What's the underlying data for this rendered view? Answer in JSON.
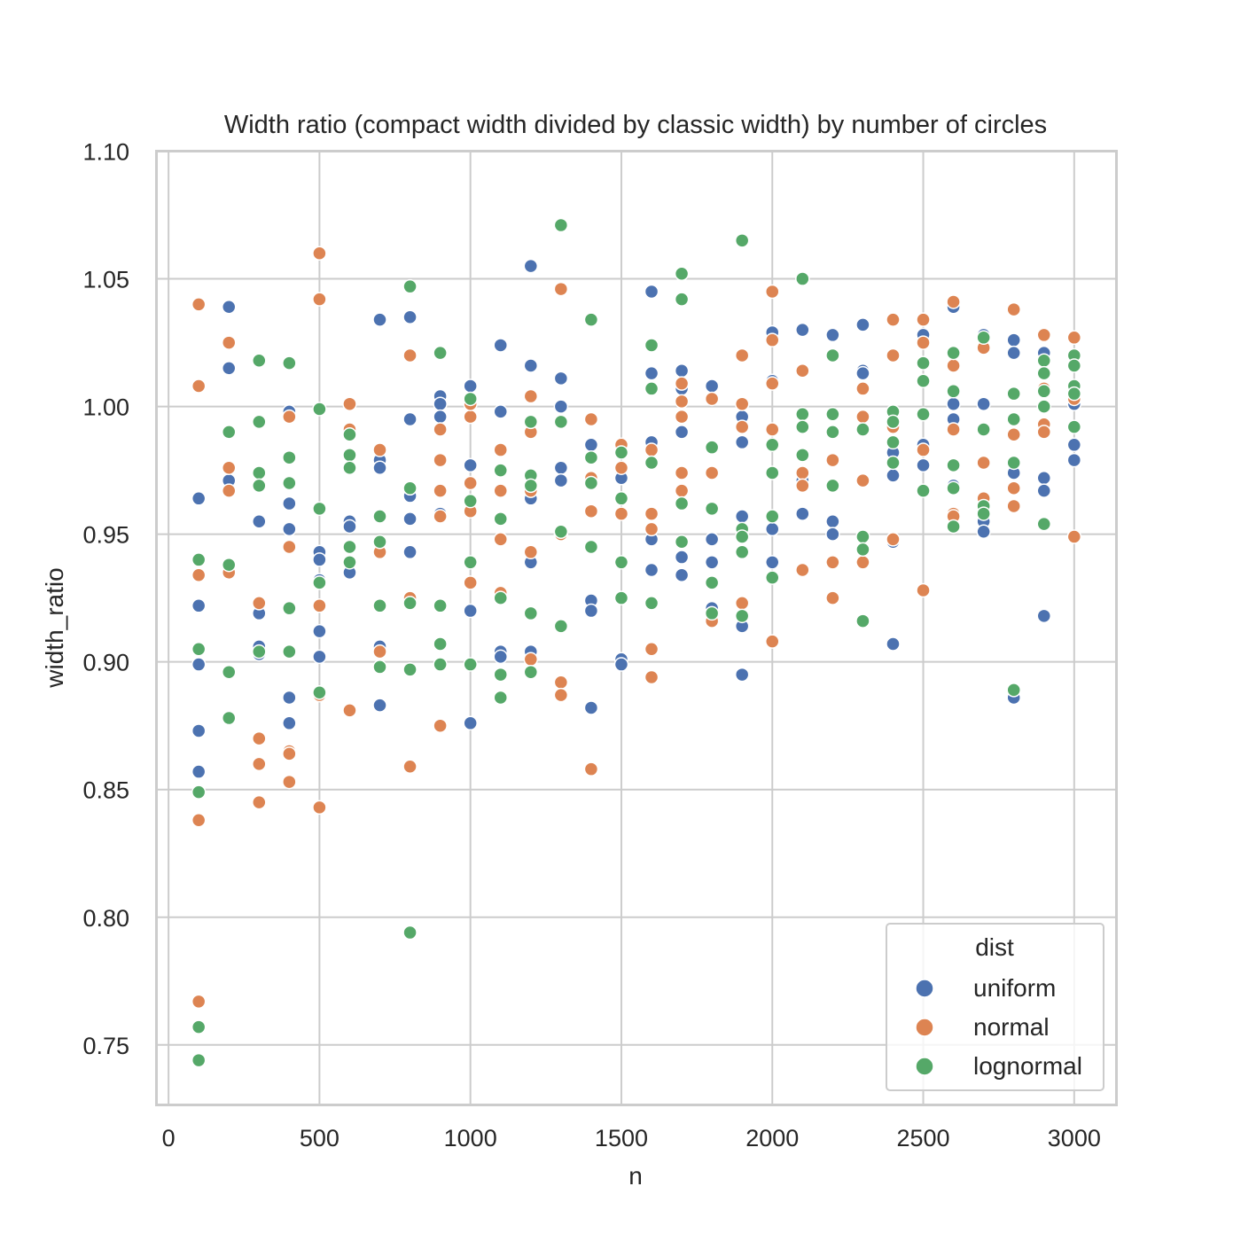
{
  "chart_data": {
    "type": "scatter",
    "title": "Width ratio (compact width divided by classic width) by number of circles",
    "xlabel": "n",
    "ylabel": "width_ratio",
    "xlim": [
      -40,
      3140
    ],
    "ylim": [
      0.7265,
      1.1
    ],
    "xticks": [
      "0",
      "500",
      "1000",
      "1500",
      "2000",
      "2500",
      "3000"
    ],
    "yticks": [
      "0.75",
      "0.80",
      "0.85",
      "0.90",
      "0.95",
      "1.00",
      "1.05",
      "1.10"
    ],
    "grid": true,
    "legend": {
      "title": "dist",
      "placement": "lower-right"
    },
    "series": [
      {
        "name": "uniform",
        "color": "#4c72b0",
        "x": [
          100,
          100,
          100,
          100,
          100,
          200,
          200,
          200,
          200,
          300,
          300,
          300,
          300,
          400,
          400,
          400,
          400,
          400,
          500,
          500,
          500,
          500,
          500,
          600,
          600,
          600,
          700,
          700,
          700,
          700,
          700,
          800,
          800,
          800,
          800,
          800,
          900,
          900,
          900,
          900,
          900,
          1000,
          1000,
          1000,
          1000,
          1100,
          1100,
          1100,
          1100,
          1200,
          1200,
          1200,
          1200,
          1200,
          1300,
          1300,
          1300,
          1300,
          1400,
          1400,
          1400,
          1400,
          1500,
          1500,
          1500,
          1500,
          1600,
          1600,
          1600,
          1600,
          1600,
          1700,
          1700,
          1700,
          1700,
          1700,
          1800,
          1800,
          1800,
          1800,
          1900,
          1900,
          1900,
          1900,
          1900,
          2000,
          2000,
          2000,
          2000,
          2100,
          2100,
          2100,
          2200,
          2200,
          2200,
          2300,
          2300,
          2300,
          2400,
          2400,
          2400,
          2400,
          2500,
          2500,
          2500,
          2600,
          2600,
          2600,
          2600,
          2700,
          2700,
          2700,
          2700,
          2800,
          2800,
          2800,
          2800,
          2900,
          2900,
          2900,
          2900,
          3000,
          3000,
          3000
        ],
        "y": [
          0.964,
          0.922,
          0.899,
          0.873,
          0.857,
          1.039,
          1.015,
          0.99,
          0.971,
          0.955,
          0.919,
          0.906,
          0.903,
          0.998,
          0.962,
          0.952,
          0.886,
          0.876,
          0.943,
          0.94,
          0.912,
          0.902,
          0.932,
          0.955,
          0.953,
          0.935,
          1.034,
          0.979,
          0.976,
          0.906,
          0.883,
          1.035,
          0.995,
          0.965,
          0.956,
          0.943,
          1.004,
          1.001,
          0.996,
          0.958,
          0.907,
          1.008,
          0.977,
          0.92,
          0.876,
          1.024,
          0.998,
          0.904,
          0.902,
          1.055,
          1.016,
          0.964,
          0.939,
          0.904,
          1.011,
          1.0,
          0.976,
          0.971,
          0.985,
          0.924,
          0.92,
          0.882,
          0.975,
          0.972,
          0.901,
          0.899,
          1.045,
          1.013,
          0.986,
          0.948,
          0.936,
          1.014,
          1.007,
          0.99,
          0.941,
          0.934,
          1.008,
          0.948,
          0.939,
          0.921,
          0.996,
          0.986,
          0.957,
          0.914,
          0.895,
          1.029,
          1.01,
          0.952,
          0.939,
          1.03,
          0.971,
          0.958,
          1.028,
          0.955,
          0.95,
          1.032,
          1.014,
          1.013,
          0.982,
          0.973,
          0.947,
          0.907,
          1.028,
          0.985,
          0.977,
          1.039,
          1.001,
          0.995,
          0.969,
          1.028,
          1.001,
          0.955,
          0.951,
          1.026,
          1.021,
          0.974,
          0.886,
          1.021,
          0.972,
          0.967,
          0.918,
          1.001,
          0.985,
          0.979
        ]
      },
      {
        "name": "normal",
        "color": "#dd8452",
        "x": [
          100,
          100,
          100,
          100,
          100,
          200,
          200,
          200,
          200,
          300,
          300,
          300,
          300,
          400,
          400,
          400,
          400,
          400,
          500,
          500,
          500,
          500,
          500,
          600,
          600,
          600,
          700,
          700,
          700,
          800,
          800,
          800,
          800,
          900,
          900,
          900,
          900,
          900,
          1000,
          1000,
          1000,
          1000,
          1000,
          1100,
          1100,
          1100,
          1100,
          1200,
          1200,
          1200,
          1200,
          1200,
          1300,
          1300,
          1300,
          1300,
          1400,
          1400,
          1400,
          1400,
          1500,
          1500,
          1500,
          1600,
          1600,
          1600,
          1600,
          1600,
          1700,
          1700,
          1700,
          1700,
          1700,
          1800,
          1800,
          1800,
          1900,
          1900,
          1900,
          1900,
          2000,
          2000,
          2000,
          2000,
          2000,
          2100,
          2100,
          2100,
          2100,
          2200,
          2200,
          2200,
          2300,
          2300,
          2300,
          2300,
          2400,
          2400,
          2400,
          2400,
          2500,
          2500,
          2500,
          2500,
          2600,
          2600,
          2600,
          2600,
          2600,
          2700,
          2700,
          2700,
          2800,
          2800,
          2800,
          2800,
          2900,
          2900,
          2900,
          2900,
          3000,
          3000,
          3000
        ],
        "y": [
          1.04,
          1.008,
          0.934,
          0.838,
          0.767,
          1.025,
          0.976,
          0.967,
          0.935,
          0.923,
          0.87,
          0.86,
          0.845,
          0.996,
          0.945,
          0.865,
          0.864,
          0.853,
          1.06,
          1.042,
          0.922,
          0.887,
          0.843,
          1.001,
          0.991,
          0.881,
          0.983,
          0.943,
          0.904,
          1.02,
          0.968,
          0.925,
          0.859,
          0.991,
          0.979,
          0.967,
          0.957,
          0.875,
          0.996,
          0.97,
          0.959,
          0.931,
          1.001,
          0.983,
          0.967,
          0.948,
          0.927,
          1.004,
          0.99,
          0.967,
          0.943,
          0.901,
          1.046,
          0.95,
          0.892,
          0.887,
          0.995,
          0.972,
          0.959,
          0.858,
          0.985,
          0.976,
          0.958,
          0.983,
          0.958,
          0.952,
          0.905,
          0.894,
          1.009,
          1.002,
          0.996,
          0.974,
          0.967,
          1.003,
          0.974,
          0.916,
          1.02,
          1.001,
          0.992,
          0.923,
          1.045,
          1.026,
          1.009,
          0.991,
          0.908,
          1.014,
          0.974,
          0.969,
          0.936,
          0.979,
          0.939,
          0.925,
          1.007,
          0.996,
          0.971,
          0.939,
          1.034,
          1.02,
          0.992,
          0.948,
          1.034,
          1.025,
          0.983,
          0.928,
          1.041,
          1.016,
          0.991,
          0.958,
          0.957,
          1.023,
          0.978,
          0.964,
          1.038,
          0.989,
          0.968,
          0.961,
          1.028,
          1.007,
          0.993,
          0.99,
          1.027,
          1.003,
          0.949
        ]
      },
      {
        "name": "lognormal",
        "color": "#55a868",
        "x": [
          100,
          100,
          100,
          100,
          100,
          200,
          200,
          200,
          200,
          300,
          300,
          300,
          300,
          300,
          400,
          400,
          400,
          400,
          400,
          500,
          500,
          500,
          500,
          600,
          600,
          600,
          600,
          600,
          700,
          700,
          700,
          700,
          800,
          800,
          800,
          800,
          800,
          900,
          900,
          900,
          900,
          1000,
          1000,
          1000,
          1000,
          1100,
          1100,
          1100,
          1100,
          1100,
          1200,
          1200,
          1200,
          1200,
          1200,
          1300,
          1300,
          1300,
          1300,
          1400,
          1400,
          1400,
          1400,
          1500,
          1500,
          1500,
          1500,
          1600,
          1600,
          1600,
          1600,
          1700,
          1700,
          1700,
          1700,
          1800,
          1800,
          1800,
          1800,
          1900,
          1900,
          1900,
          1900,
          1900,
          2000,
          2000,
          2000,
          2000,
          2100,
          2100,
          2100,
          2100,
          2200,
          2200,
          2200,
          2200,
          2300,
          2300,
          2300,
          2300,
          2400,
          2400,
          2400,
          2400,
          2500,
          2500,
          2500,
          2500,
          2600,
          2600,
          2600,
          2600,
          2600,
          2700,
          2700,
          2700,
          2700,
          2800,
          2800,
          2800,
          2800,
          2900,
          2900,
          2900,
          2900,
          2900,
          3000,
          3000,
          3000,
          3000,
          3000
        ],
        "y": [
          0.94,
          0.905,
          0.849,
          0.757,
          0.744,
          0.99,
          0.938,
          0.896,
          0.878,
          1.018,
          0.994,
          0.974,
          0.969,
          0.904,
          1.017,
          0.98,
          0.97,
          0.921,
          0.904,
          0.999,
          0.96,
          0.931,
          0.888,
          0.989,
          0.981,
          0.976,
          0.945,
          0.939,
          0.957,
          0.947,
          0.922,
          0.898,
          1.047,
          0.968,
          0.923,
          0.897,
          0.794,
          1.021,
          0.922,
          0.907,
          0.899,
          1.003,
          0.963,
          0.939,
          0.899,
          0.975,
          0.956,
          0.925,
          0.895,
          0.886,
          0.994,
          0.973,
          0.969,
          0.919,
          0.896,
          1.071,
          0.994,
          0.951,
          0.914,
          1.034,
          0.98,
          0.97,
          0.945,
          0.982,
          0.964,
          0.939,
          0.925,
          1.024,
          1.007,
          0.978,
          0.923,
          1.052,
          1.042,
          0.962,
          0.947,
          0.984,
          0.96,
          0.931,
          0.919,
          1.065,
          0.952,
          0.949,
          0.943,
          0.918,
          0.985,
          0.974,
          0.957,
          0.933,
          1.05,
          0.997,
          0.992,
          0.981,
          1.02,
          0.997,
          0.99,
          0.969,
          0.991,
          0.949,
          0.944,
          0.916,
          0.998,
          0.994,
          0.986,
          0.978,
          1.017,
          1.01,
          0.997,
          0.967,
          1.021,
          1.006,
          0.977,
          0.968,
          0.953,
          1.027,
          0.991,
          0.961,
          0.958,
          1.005,
          0.995,
          0.978,
          0.889,
          1.018,
          1.013,
          1.006,
          1.0,
          0.954,
          1.02,
          1.016,
          1.008,
          0.992,
          1.005
        ]
      }
    ]
  }
}
